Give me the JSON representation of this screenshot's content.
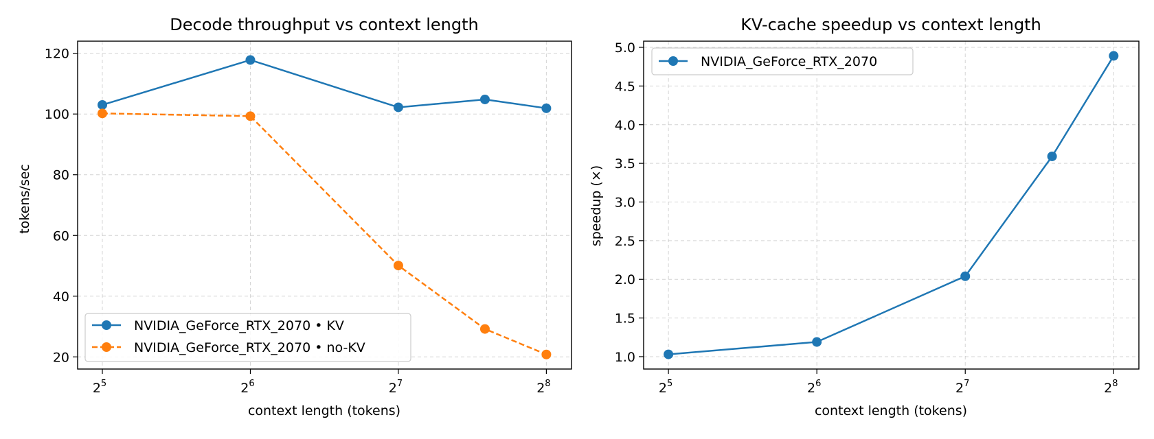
{
  "chart_data": [
    {
      "type": "line",
      "title": "Decode throughput vs context length",
      "xlabel": "context length (tokens)",
      "ylabel": "tokens/sec",
      "xscale": "log2",
      "xlim": [
        28.5,
        288
      ],
      "ylim": [
        16,
        124
      ],
      "xticks": [
        {
          "value": 32,
          "base": "2",
          "exp": "5"
        },
        {
          "value": 64,
          "base": "2",
          "exp": "6"
        },
        {
          "value": 128,
          "base": "2",
          "exp": "7"
        },
        {
          "value": 256,
          "base": "2",
          "exp": "8"
        }
      ],
      "yticks": [
        20,
        40,
        60,
        80,
        100,
        120
      ],
      "grid": true,
      "legend": "lower-left",
      "x": [
        32,
        64,
        128,
        192,
        256
      ],
      "series": [
        {
          "name": "NVIDIA_GeForce_RTX_2070 • KV",
          "values": [
            103.0,
            117.8,
            102.2,
            104.8,
            101.9
          ],
          "color": "#1f77b4",
          "dashed": false
        },
        {
          "name": "NVIDIA_GeForce_RTX_2070 • no-KV",
          "values": [
            100.2,
            99.3,
            50.1,
            29.2,
            20.8
          ],
          "color": "#ff7f0e",
          "dashed": true
        }
      ]
    },
    {
      "type": "line",
      "title": "KV-cache speedup vs context length",
      "xlabel": "context length (tokens)",
      "ylabel": "speedup (×)",
      "xscale": "log2",
      "xlim": [
        28.5,
        288
      ],
      "ylim": [
        0.84,
        5.08
      ],
      "xticks": [
        {
          "value": 32,
          "base": "2",
          "exp": "5"
        },
        {
          "value": 64,
          "base": "2",
          "exp": "6"
        },
        {
          "value": 128,
          "base": "2",
          "exp": "7"
        },
        {
          "value": 256,
          "base": "2",
          "exp": "8"
        }
      ],
      "yticks": [
        "1.0",
        "1.5",
        "2.0",
        "2.5",
        "3.0",
        "3.5",
        "4.0",
        "4.5",
        "5.0"
      ],
      "grid": true,
      "legend": "upper-left",
      "x": [
        32,
        64,
        128,
        192,
        256
      ],
      "series": [
        {
          "name": "NVIDIA_GeForce_RTX_2070",
          "values": [
            1.03,
            1.19,
            2.04,
            3.59,
            4.89
          ],
          "color": "#1f77b4",
          "dashed": false
        }
      ]
    }
  ]
}
